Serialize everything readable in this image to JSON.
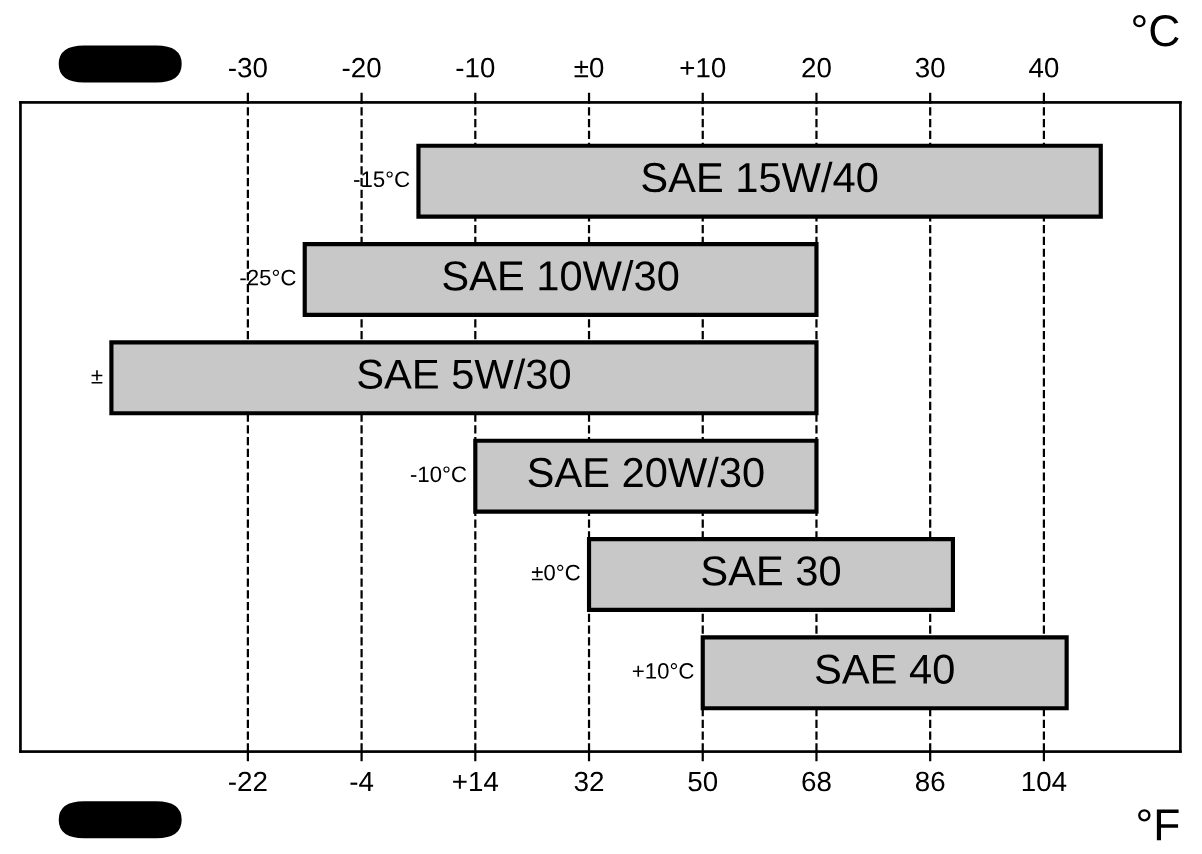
{
  "chart_data": {
    "type": "bar",
    "orientation": "horizontal",
    "xlabel": "°C",
    "x2label": "°F",
    "categories": [
      "SAE 15W/40",
      "SAE 10W/30",
      "SAE 5W/30",
      "SAE 20W/30",
      "SAE 30",
      "SAE 40"
    ],
    "base": [
      -15,
      -25,
      -42,
      -10,
      0,
      10
    ],
    "values": [
      60,
      45,
      62,
      30,
      32,
      32
    ],
    "color": "#c8c8c8",
    "xlim": [
      -50,
      52
    ],
    "xticks": [
      -30,
      -20,
      -10,
      {
        "value": 0,
        "label": "±0"
      },
      {
        "value": 10,
        "label": "+10"
      },
      20,
      30,
      40
    ],
    "x2lim": [
      -58,
      125.6
    ],
    "x2ticks": [
      -22,
      -4,
      {
        "value": 14,
        "label": "+14"
      },
      32,
      50,
      68,
      86,
      104
    ],
    "grid": "x",
    "annotations": [
      {
        "text": "-15°C",
        "x": -15,
        "y": "SAE 15W/40"
      },
      {
        "text": "-25°C",
        "x": -25,
        "y": "SAE 10W/30"
      },
      {
        "text": "±",
        "x": -42,
        "y": "SAE 5W/30"
      },
      {
        "text": "-10°C",
        "x": -10,
        "y": "SAE 20W/30"
      },
      {
        "text": "±0°C",
        "x": 0,
        "y": "SAE 30"
      },
      {
        "text": "+10°C",
        "x": 10,
        "y": "SAE 40"
      }
    ]
  }
}
